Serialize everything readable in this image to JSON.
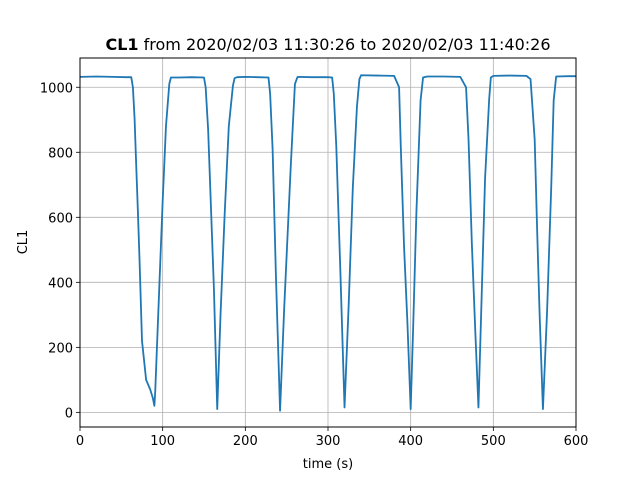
{
  "chart_data": {
    "type": "line",
    "title": {
      "bold": "CL1",
      "rest": " from 2020/02/03 11:30:26 to 2020/02/03 11:40:26"
    },
    "xlabel": "time (s)",
    "ylabel": "CL1",
    "xlim": [
      0,
      600
    ],
    "ylim": [
      -45,
      1090
    ],
    "xticks": [
      0,
      100,
      200,
      300,
      400,
      500,
      600
    ],
    "yticks": [
      0,
      200,
      400,
      600,
      800,
      1000
    ],
    "grid": true,
    "series": [
      {
        "color": "#1f77b4",
        "x": [
          0,
          20,
          40,
          55,
          62,
          64,
          66,
          68,
          70,
          72,
          75,
          80,
          85,
          88,
          90,
          91,
          96,
          100,
          104,
          108,
          110,
          120,
          135,
          150,
          152,
          155,
          158,
          162,
          166,
          170,
          175,
          180,
          185,
          187,
          190,
          200,
          215,
          228,
          230,
          233,
          237,
          242,
          247,
          255,
          260,
          263,
          265,
          280,
          300,
          305,
          307,
          310,
          315,
          320,
          325,
          330,
          335,
          338,
          340,
          360,
          380,
          386,
          388,
          392,
          396,
          400,
          403,
          407,
          412,
          415,
          420,
          440,
          460,
          467,
          470,
          474,
          478,
          482,
          485,
          490,
          495,
          497,
          500,
          520,
          540,
          545,
          550,
          553,
          556,
          560,
          565,
          570,
          573,
          576,
          590,
          600
        ],
        "y": [
          1032,
          1033,
          1032,
          1031,
          1031,
          1000,
          905,
          760,
          620,
          470,
          220,
          100,
          70,
          45,
          20,
          65,
          390,
          650,
          880,
          1010,
          1030,
          1030,
          1031,
          1030,
          1000,
          870,
          660,
          380,
          10,
          300,
          610,
          880,
          1005,
          1028,
          1031,
          1032,
          1031,
          1030,
          980,
          810,
          420,
          5,
          320,
          760,
          1010,
          1031,
          1032,
          1031,
          1031,
          1030,
          980,
          820,
          430,
          15,
          330,
          690,
          940,
          1025,
          1037,
          1036,
          1035,
          1000,
          820,
          510,
          280,
          10,
          260,
          620,
          960,
          1030,
          1033,
          1033,
          1032,
          1000,
          840,
          520,
          260,
          15,
          280,
          720,
          965,
          1030,
          1035,
          1036,
          1035,
          1025,
          840,
          560,
          300,
          10,
          310,
          690,
          960,
          1033,
          1034,
          1034
        ]
      }
    ]
  }
}
